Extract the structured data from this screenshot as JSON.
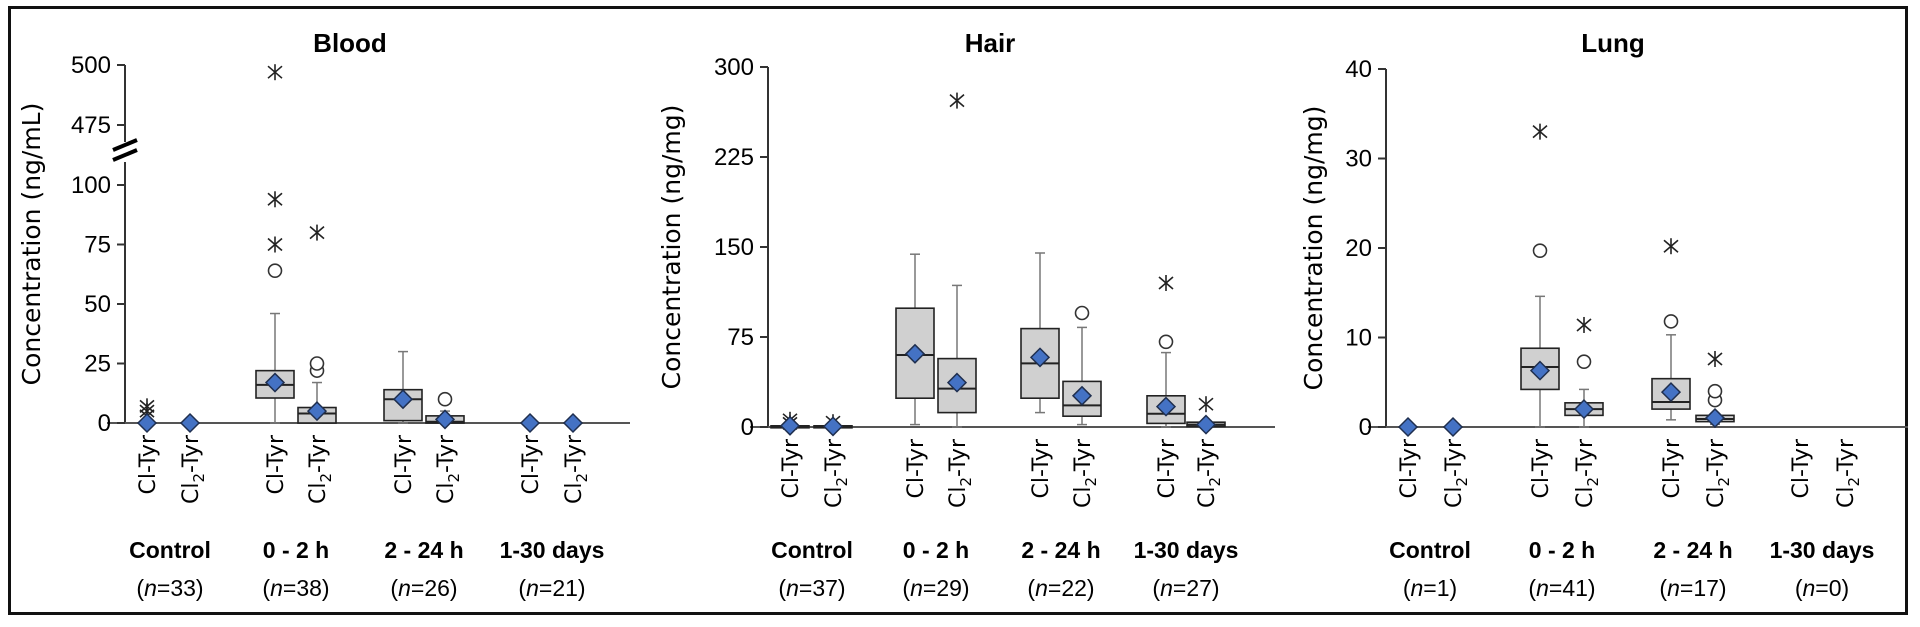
{
  "chart_data": [
    {
      "type": "box",
      "title": "Blood",
      "ylabel": "Concentration (ng/mL)",
      "axis_break": {
        "lower_max": 100,
        "upper_min": 475
      },
      "ylim": [
        0,
        500
      ],
      "yticks": [
        0,
        25,
        50,
        75,
        100,
        475,
        500
      ],
      "groups": [
        {
          "label": "Control",
          "n": "(n=33)",
          "n_value": 33
        },
        {
          "label": "0 - 2 h",
          "n": "(n=38)",
          "n_value": 38
        },
        {
          "label": "2 - 24 h",
          "n": "(n=26)",
          "n_value": 26
        },
        {
          "label": "1-30 days",
          "n": "(n=21)",
          "n_value": 21
        }
      ],
      "analytes": [
        "Cl-Tyr",
        "Cl2-Tyr"
      ],
      "boxes": [
        {
          "group": 0,
          "analyte": "Cl-Tyr",
          "min": 0,
          "q1": 0,
          "median": 0,
          "q3": 0,
          "max": 0,
          "mean": 0,
          "outliers": [],
          "extremes": [
            3,
            5,
            7
          ]
        },
        {
          "group": 0,
          "analyte": "Cl2-Tyr",
          "min": 0,
          "q1": 0,
          "median": 0,
          "q3": 0,
          "max": 0,
          "mean": 0,
          "outliers": [],
          "extremes": []
        },
        {
          "group": 1,
          "analyte": "Cl-Tyr",
          "min": 0,
          "q1": 10.5,
          "median": 16,
          "q3": 22,
          "max": 46,
          "mean": 17,
          "outliers": [
            64
          ],
          "extremes": [
            75,
            94,
            497
          ]
        },
        {
          "group": 1,
          "analyte": "Cl2-Tyr",
          "min": 0,
          "q1": 0,
          "median": 4,
          "q3": 6.5,
          "max": 17,
          "mean": 5,
          "outliers": [
            22,
            25
          ],
          "extremes": [
            80
          ]
        },
        {
          "group": 2,
          "analyte": "Cl-Tyr",
          "min": 0,
          "q1": 1,
          "median": 10,
          "q3": 14,
          "max": 30,
          "mean": 10,
          "outliers": [],
          "extremes": []
        },
        {
          "group": 2,
          "analyte": "Cl2-Tyr",
          "min": 0,
          "q1": 0,
          "median": 0.5,
          "q3": 3,
          "max": 5,
          "mean": 1.5,
          "outliers": [
            10
          ],
          "extremes": []
        },
        {
          "group": 3,
          "analyte": "Cl-Tyr",
          "min": 0,
          "q1": 0,
          "median": 0,
          "q3": 0,
          "max": 0,
          "mean": 0,
          "outliers": [],
          "extremes": []
        },
        {
          "group": 3,
          "analyte": "Cl2-Tyr",
          "min": 0,
          "q1": 0,
          "median": 0,
          "q3": 0,
          "max": 0,
          "mean": 0,
          "outliers": [],
          "extremes": []
        }
      ]
    },
    {
      "type": "box",
      "title": "Hair",
      "ylabel": "Concentration (ng/mg)",
      "ylim": [
        0,
        300
      ],
      "yticks": [
        0,
        75,
        150,
        225,
        300
      ],
      "groups": [
        {
          "label": "Control",
          "n": "(n=37)",
          "n_value": 37
        },
        {
          "label": "0 - 2 h",
          "n": "(n=29)",
          "n_value": 29
        },
        {
          "label": "2 - 24 h",
          "n": "(n=22)",
          "n_value": 22
        },
        {
          "label": "1-30 days",
          "n": "(n=27)",
          "n_value": 27
        }
      ],
      "analytes": [
        "Cl-Tyr",
        "Cl2-Tyr"
      ],
      "boxes": [
        {
          "group": 0,
          "analyte": "Cl-Tyr",
          "min": 0,
          "q1": 0,
          "median": 0,
          "q3": 1,
          "max": 1,
          "mean": 1,
          "outliers": [],
          "extremes": [
            3,
            6
          ]
        },
        {
          "group": 0,
          "analyte": "Cl2-Tyr",
          "min": 0,
          "q1": 0,
          "median": 0.5,
          "q3": 1,
          "max": 1,
          "mean": 0.5,
          "outliers": [],
          "extremes": [
            4
          ]
        },
        {
          "group": 1,
          "analyte": "Cl-Tyr",
          "min": 2,
          "q1": 24,
          "median": 60,
          "q3": 99,
          "max": 144,
          "mean": 61,
          "outliers": [],
          "extremes": []
        },
        {
          "group": 1,
          "analyte": "Cl2-Tyr",
          "min": 0,
          "q1": 12,
          "median": 32,
          "q3": 57,
          "max": 118,
          "mean": 37,
          "outliers": [],
          "extremes": [
            272
          ]
        },
        {
          "group": 2,
          "analyte": "Cl-Tyr",
          "min": 12,
          "q1": 24,
          "median": 53,
          "q3": 82,
          "max": 145,
          "mean": 58,
          "outliers": [],
          "extremes": []
        },
        {
          "group": 2,
          "analyte": "Cl2-Tyr",
          "min": 2,
          "q1": 9,
          "median": 18,
          "q3": 38,
          "max": 83,
          "mean": 26,
          "outliers": [
            95
          ],
          "extremes": []
        },
        {
          "group": 3,
          "analyte": "Cl-Tyr",
          "min": 0,
          "q1": 3,
          "median": 11,
          "q3": 26,
          "max": 62,
          "mean": 17,
          "outliers": [
            71
          ],
          "extremes": [
            120
          ]
        },
        {
          "group": 3,
          "analyte": "Cl2-Tyr",
          "min": 0,
          "q1": 0.5,
          "median": 2,
          "q3": 4,
          "max": 5,
          "mean": 2,
          "outliers": [],
          "extremes": [
            19
          ]
        }
      ]
    },
    {
      "type": "box",
      "title": "Lung",
      "ylabel": "Concentration (ng/mg)",
      "ylim": [
        0,
        40
      ],
      "yticks": [
        0,
        10,
        20,
        30,
        40
      ],
      "groups": [
        {
          "label": "Control",
          "n": "(n=1)",
          "n_value": 1
        },
        {
          "label": "0 - 2 h",
          "n": "(n=41)",
          "n_value": 41
        },
        {
          "label": "2 - 24 h",
          "n": "(n=17)",
          "n_value": 17
        },
        {
          "label": "1-30 days",
          "n": "(n=0)",
          "n_value": 0
        }
      ],
      "analytes": [
        "Cl-Tyr",
        "Cl2-Tyr"
      ],
      "boxes": [
        {
          "group": 0,
          "analyte": "Cl-Tyr",
          "min": 0,
          "q1": 0,
          "median": 0,
          "q3": 0,
          "max": 0,
          "mean": 0,
          "outliers": [],
          "extremes": []
        },
        {
          "group": 0,
          "analyte": "Cl2-Tyr",
          "min": 0,
          "q1": 0,
          "median": 0,
          "q3": 0,
          "max": 0,
          "mean": 0,
          "outliers": [],
          "extremes": []
        },
        {
          "group": 1,
          "analyte": "Cl-Tyr",
          "min": 0,
          "q1": 4.2,
          "median": 6.7,
          "q3": 8.8,
          "max": 14.6,
          "mean": 6.3,
          "outliers": [
            19.7
          ],
          "extremes": [
            33
          ]
        },
        {
          "group": 1,
          "analyte": "Cl2-Tyr",
          "min": 0,
          "q1": 1.3,
          "median": 2,
          "q3": 2.7,
          "max": 4.2,
          "mean": 2,
          "outliers": [
            7.3
          ],
          "extremes": [
            11.4
          ]
        },
        {
          "group": 2,
          "analyte": "Cl-Tyr",
          "min": 0.8,
          "q1": 2,
          "median": 2.8,
          "q3": 5.4,
          "max": 10.3,
          "mean": 3.9,
          "outliers": [
            11.8
          ],
          "extremes": [
            20.2
          ]
        },
        {
          "group": 2,
          "analyte": "Cl2-Tyr",
          "min": 0.3,
          "q1": 0.6,
          "median": 0.9,
          "q3": 1.3,
          "max": 1.5,
          "mean": 1,
          "outliers": [
            3,
            4
          ],
          "extremes": [
            7.6
          ]
        }
      ]
    }
  ],
  "legend_semantics": {
    "box_fill": "#d0d0d0",
    "mean_marker": "diamond",
    "mean_color": "#4472c4",
    "outlier_marker": "circle",
    "extreme_marker": "asterisk"
  }
}
